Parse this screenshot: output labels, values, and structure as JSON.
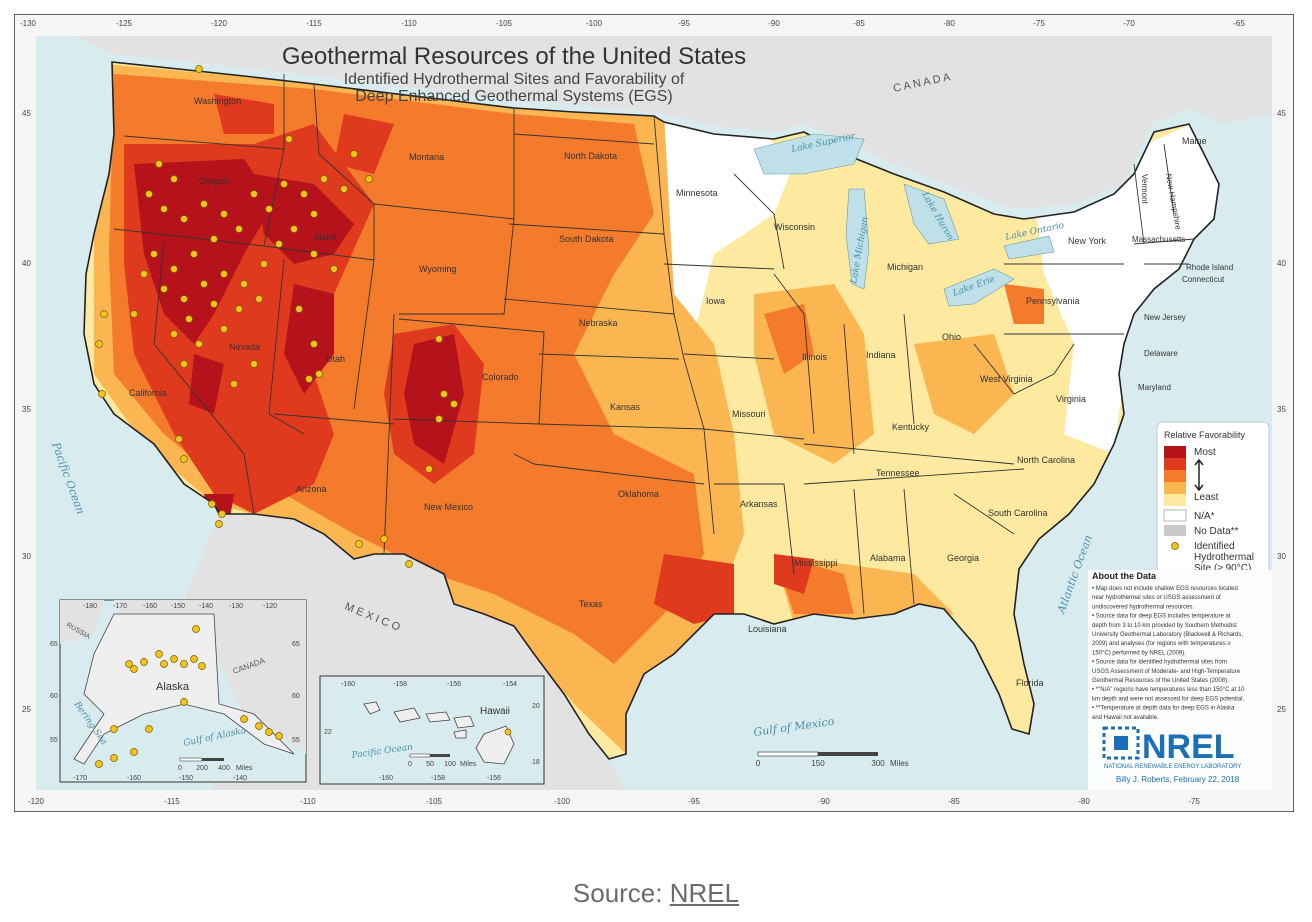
{
  "title": "Geothermal Resources of the United States",
  "subtitle_lines": [
    "Identified Hydrothermal Sites and Favorability of",
    "Deep Enhanced Geothermal Systems (EGS)"
  ],
  "colors": {
    "most": "#b5121b",
    "high": "#e03a1e",
    "mid": "#f47a2c",
    "low": "#fbb651",
    "least": "#fdeaa0",
    "na": "#ffffff",
    "nodata": "#c9c9c9",
    "site": "#f0c419",
    "ocean": "#d8ecef",
    "land_other": "#e6e6e6"
  },
  "lon_ticks_top": [
    "-130",
    "-125",
    "-120",
    "-115",
    "-110",
    "-105",
    "-100",
    "-95",
    "-90",
    "-85",
    "-80",
    "-75",
    "-70",
    "-65"
  ],
  "lon_ticks_bottom": [
    "-120",
    "-115",
    "-110",
    "-105",
    "-100",
    "-95",
    "-90",
    "-85",
    "-80",
    "-75"
  ],
  "lat_ticks_left": [
    "45",
    "40",
    "35",
    "30",
    "25"
  ],
  "lat_ticks_right": [
    "45",
    "40",
    "35",
    "30",
    "25"
  ],
  "country_labels": {
    "canada": "C  A  N  A  D  A",
    "mexico": "M  E  X  I  C  O"
  },
  "water_labels": {
    "pacific": "Pacific Ocean",
    "atlantic": "Atlantic Ocean",
    "gulf": "Gulf of Mexico",
    "superior": "Lake Superior",
    "michigan": "Lake Michigan",
    "huron": "Lake Huron",
    "ontario": "Lake Ontario",
    "erie": "Lake Erie"
  },
  "states": [
    {
      "name": "Washington"
    },
    {
      "name": "Oregon"
    },
    {
      "name": "California"
    },
    {
      "name": "Nevada"
    },
    {
      "name": "Idaho"
    },
    {
      "name": "Montana"
    },
    {
      "name": "Wyoming"
    },
    {
      "name": "Utah"
    },
    {
      "name": "Arizona"
    },
    {
      "name": "New Mexico"
    },
    {
      "name": "Colorado"
    },
    {
      "name": "North Dakota"
    },
    {
      "name": "South Dakota"
    },
    {
      "name": "Nebraska"
    },
    {
      "name": "Kansas"
    },
    {
      "name": "Oklahoma"
    },
    {
      "name": "Texas"
    },
    {
      "name": "Minnesota"
    },
    {
      "name": "Iowa"
    },
    {
      "name": "Missouri"
    },
    {
      "name": "Arkansas"
    },
    {
      "name": "Louisiana"
    },
    {
      "name": "Wisconsin"
    },
    {
      "name": "Illinois"
    },
    {
      "name": "Michigan"
    },
    {
      "name": "Indiana"
    },
    {
      "name": "Ohio"
    },
    {
      "name": "Kentucky"
    },
    {
      "name": "Tennessee"
    },
    {
      "name": "Mississippi"
    },
    {
      "name": "Alabama"
    },
    {
      "name": "Georgia"
    },
    {
      "name": "Florida"
    },
    {
      "name": "South Carolina"
    },
    {
      "name": "North Carolina"
    },
    {
      "name": "Virginia"
    },
    {
      "name": "West Virginia"
    },
    {
      "name": "Pennsylvania"
    },
    {
      "name": "New York"
    },
    {
      "name": "Maine"
    },
    {
      "name": "Vermont"
    },
    {
      "name": "New Hampshire"
    },
    {
      "name": "Massachusetts"
    },
    {
      "name": "Rhode Island"
    },
    {
      "name": "Connecticut"
    },
    {
      "name": "New Jersey"
    },
    {
      "name": "Delaware"
    },
    {
      "name": "Maryland"
    }
  ],
  "legend": {
    "title": "Relative Favorability",
    "most": "Most",
    "least": "Least",
    "na": "N/A*",
    "nodata": "No Data**",
    "site_lines": [
      "Identified",
      "Hydrothermal",
      "Site (≥ 90°C)"
    ]
  },
  "about": {
    "title": "About the Data",
    "lines": [
      "• Map does not include shallow EGS resources located",
      "near hydrothermal sites or USGS assessment of",
      "undiscovered hydrothermal resources.",
      "• Source data for deep EGS includes temperature at",
      "depth from 3 to 10 km provided by Southern Methodist",
      "University Geothermal Laboratory (Blackwell & Richards,",
      "2009) and analyses (for regions with temperatures ≥",
      "150°C) performed by NREL (2009).",
      "• Source data for identified hydrothermal sites from",
      "USGS Assessment of Moderate- and High-Temperature",
      "Geothermal Resources of the United States (2008).",
      "• *\"N/A\" regions have temperatures less than 150°C at 10",
      "km depth and were not assessed for deep EGS potential.",
      "• **Temperature at depth data for deep EGS in Alaska",
      "and Hawaii not available."
    ]
  },
  "logo": {
    "text": "NREL",
    "full": "NATIONAL RENEWABLE ENERGY LABORATORY"
  },
  "credit": "Billy J. Roberts, February 22, 2018",
  "scale_main": [
    "0",
    "150",
    "300",
    "Miles"
  ],
  "alaska": {
    "label": "Alaska",
    "russia": "RUSSIA",
    "canada": "CANADA",
    "bering": "Bering Sea",
    "gulf": "Gulf of Alaska",
    "lon_top": [
      "-180",
      "-170",
      "-160",
      "-150",
      "-140",
      "-130",
      "-120"
    ],
    "lon_bottom": [
      "-170",
      "-160",
      "-150",
      "-140"
    ],
    "lat_left": [
      "65",
      "60",
      "55"
    ],
    "lat_right": [
      "65",
      "60",
      "55"
    ],
    "scale": [
      "0",
      "200",
      "400",
      "Miles"
    ]
  },
  "hawaii": {
    "label": "Hawaii",
    "ocean": "Pacific Ocean",
    "lon_top": [
      "-160",
      "-158",
      "-156",
      "-154"
    ],
    "lon_bottom": [
      "-160",
      "-158",
      "-156"
    ],
    "lat_left": [
      "22"
    ],
    "lat_right": [
      "20",
      "18"
    ],
    "scale": [
      "0",
      "50",
      "100",
      "Miles"
    ]
  },
  "caption": {
    "label": "Source:",
    "link": "NREL"
  }
}
